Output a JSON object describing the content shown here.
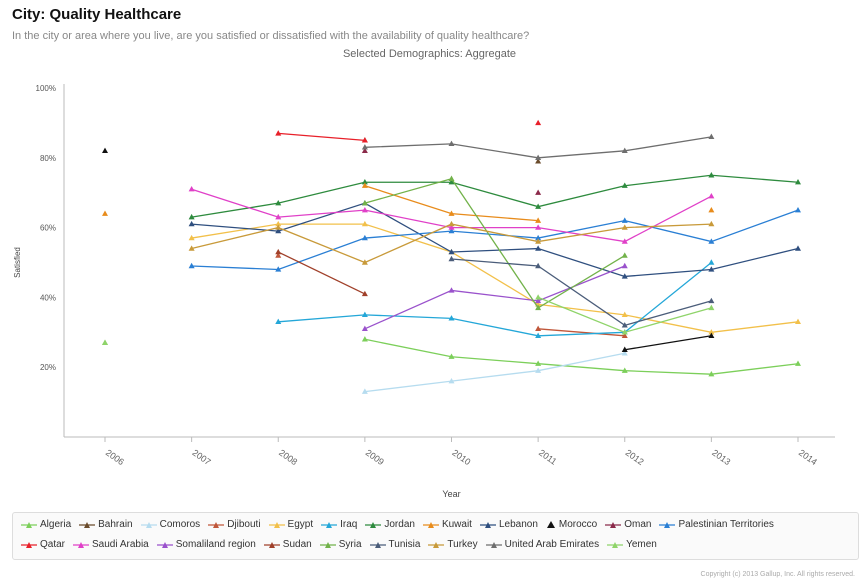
{
  "header": {
    "title": "City: Quality Healthcare",
    "subtitle": "In the city or area where you live, are you satisfied or dissatisfied with the availability of quality healthcare?",
    "demographics": "Selected Demographics: Aggregate"
  },
  "footer": {
    "copyright": "Copyright (c) 2013 Gallup, Inc. All rights reserved."
  },
  "chart_data": {
    "type": "line",
    "title": "City: Quality Healthcare",
    "xlabel": "Year",
    "ylabel": "Satisfied",
    "x": [
      "2006",
      "2007",
      "2008",
      "2009",
      "2010",
      "2011",
      "2012",
      "2013",
      "2014"
    ],
    "ylim": [
      0,
      100
    ],
    "yticks": [
      "20%",
      "40%",
      "60%",
      "80%",
      "100%"
    ],
    "grid": false,
    "legend_position": "bottom",
    "series": [
      {
        "name": "Algeria",
        "color": "#7ccf5a",
        "values": [
          null,
          null,
          null,
          28,
          23,
          21,
          19,
          18,
          21
        ]
      },
      {
        "name": "Bahrain",
        "color": "#6b4c2c",
        "values": [
          null,
          null,
          null,
          85,
          null,
          79,
          null,
          null,
          null
        ]
      },
      {
        "name": "Comoros",
        "color": "#b6dcef",
        "values": [
          null,
          null,
          null,
          13,
          16,
          19,
          24,
          null,
          null
        ]
      },
      {
        "name": "Djibouti",
        "color": "#c0573a",
        "values": [
          null,
          null,
          52,
          null,
          null,
          31,
          29,
          null,
          null
        ]
      },
      {
        "name": "Egypt",
        "color": "#f2c04a",
        "values": [
          null,
          57,
          61,
          61,
          53,
          38,
          35,
          30,
          33
        ]
      },
      {
        "name": "Iraq",
        "color": "#24a7d8",
        "values": [
          null,
          null,
          33,
          35,
          34,
          29,
          30,
          50,
          null
        ]
      },
      {
        "name": "Jordan",
        "color": "#2e8b3e",
        "values": [
          null,
          63,
          67,
          73,
          73,
          66,
          72,
          75,
          73
        ]
      },
      {
        "name": "Kuwait",
        "color": "#e88c1c",
        "values": [
          64,
          null,
          null,
          72,
          64,
          62,
          null,
          65,
          null
        ]
      },
      {
        "name": "Lebanon",
        "color": "#2f4f7f",
        "values": [
          null,
          61,
          59,
          67,
          53,
          54,
          46,
          48,
          54
        ]
      },
      {
        "name": "Morocco",
        "color": "#111111",
        "values": [
          82,
          null,
          null,
          null,
          null,
          null,
          25,
          29,
          null
        ]
      },
      {
        "name": "Oman",
        "color": "#8b2a4a",
        "values": [
          null,
          null,
          null,
          82,
          null,
          70,
          null,
          null,
          null
        ]
      },
      {
        "name": "Palestinian Territories",
        "color": "#2a7fd4",
        "values": [
          null,
          49,
          48,
          57,
          59,
          57,
          62,
          56,
          65
        ]
      },
      {
        "name": "Qatar",
        "color": "#e8202a",
        "values": [
          null,
          null,
          87,
          85,
          null,
          90,
          null,
          null,
          null
        ]
      },
      {
        "name": "Saudi Arabia",
        "color": "#e040c8",
        "values": [
          null,
          71,
          63,
          65,
          60,
          60,
          56,
          69,
          null
        ]
      },
      {
        "name": "Somaliland region",
        "color": "#9a52cc",
        "values": [
          null,
          null,
          null,
          31,
          42,
          39,
          49,
          null,
          null
        ]
      },
      {
        "name": "Sudan",
        "color": "#a0402a",
        "values": [
          null,
          null,
          53,
          41,
          null,
          null,
          null,
          null,
          null
        ]
      },
      {
        "name": "Syria",
        "color": "#72b24a",
        "values": [
          27,
          null,
          null,
          67,
          74,
          37,
          52,
          null,
          null
        ]
      },
      {
        "name": "Tunisia",
        "color": "#4b5d7a",
        "values": [
          null,
          null,
          null,
          null,
          51,
          49,
          32,
          39,
          null
        ]
      },
      {
        "name": "Turkey",
        "color": "#c89a3a",
        "values": [
          null,
          54,
          60,
          50,
          61,
          56,
          60,
          61,
          null
        ]
      },
      {
        "name": "United Arab Emirates",
        "color": "#6e6e6e",
        "values": [
          null,
          null,
          null,
          83,
          84,
          80,
          82,
          86,
          null
        ]
      },
      {
        "name": "Yemen",
        "color": "#8fd46a",
        "values": [
          27,
          null,
          null,
          null,
          null,
          40,
          30,
          37,
          null
        ]
      }
    ]
  }
}
